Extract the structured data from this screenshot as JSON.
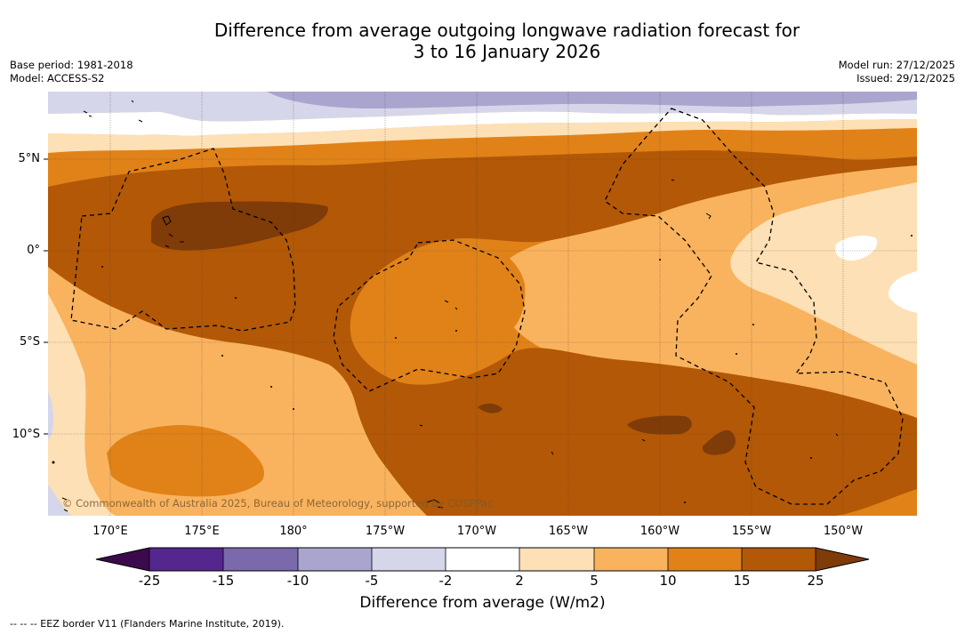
{
  "header": {
    "title_line1": "Difference from average outgoing longwave radiation forecast for",
    "title_line2": "3 to 16 January 2026",
    "base_period": "Base period: 1981-2018",
    "model": "Model: ACCESS-S2",
    "model_run": "Model run: 27/12/2025",
    "issued": "Issued: 29/12/2025"
  },
  "map": {
    "lat_labels": [
      "5°N",
      "0°",
      "5°S",
      "10°S"
    ],
    "lon_labels": [
      "170°E",
      "175°E",
      "180°",
      "175°W",
      "170°W",
      "165°W",
      "160°W",
      "155°W",
      "150°W"
    ],
    "copyright": "© Commonwealth of Australia 2025, Bureau of Meteorology, supported by COSPPac"
  },
  "colorbar": {
    "ticks": [
      "-25",
      "-15",
      "-10",
      "-5",
      "-2",
      "2",
      "5",
      "10",
      "15",
      "25"
    ],
    "colors": {
      "below_min": "#3b0a4c",
      "c_m25": "#54278f",
      "c_m15": "#7a6aab",
      "c_m10": "#aaa5cf",
      "c_m5": "#d6d6ea",
      "c_m2": "#ffffff",
      "c_p2": "#fde0b5",
      "c_p5": "#f9b35e",
      "c_p10": "#e08218",
      "c_p15": "#b35806",
      "above_max": "#7f3b08"
    },
    "label": "Difference from average (W/m2)"
  },
  "legend": {
    "eez": "--  --  -- EEZ border V11 (Flanders Marine Institute, 2019)."
  }
}
